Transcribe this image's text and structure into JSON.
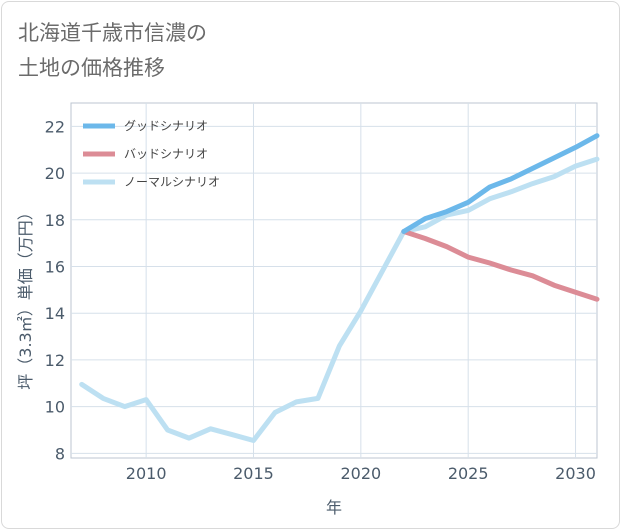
{
  "title_lines": [
    "北海道千歳市信濃の",
    "土地の価格推移"
  ],
  "chart_data": {
    "type": "line",
    "title": "北海道千歳市信濃の土地の価格推移",
    "xlabel": "年",
    "ylabel": "坪（3.3㎡）単価（万円）",
    "xlim": [
      2006.5,
      2031
    ],
    "ylim": [
      7.8,
      23
    ],
    "xticks": [
      2010,
      2015,
      2020,
      2025,
      2030
    ],
    "yticks": [
      8,
      10,
      12,
      14,
      16,
      18,
      20,
      22
    ],
    "grid": true,
    "legend_position": "top-left",
    "series": [
      {
        "name": "グッドシナリオ",
        "color": "#6cb8ea",
        "x": [
          2022,
          2023,
          2024,
          2025,
          2026,
          2027,
          2028,
          2029,
          2030,
          2031
        ],
        "y": [
          17.5,
          18.05,
          18.35,
          18.75,
          19.4,
          19.75,
          20.2,
          20.65,
          21.1,
          21.6
        ]
      },
      {
        "name": "バッドシナリオ",
        "color": "#dc8c96",
        "x": [
          2022,
          2023,
          2024,
          2025,
          2026,
          2027,
          2028,
          2029,
          2030,
          2031
        ],
        "y": [
          17.5,
          17.2,
          16.85,
          16.4,
          16.15,
          15.85,
          15.6,
          15.2,
          14.9,
          14.6
        ]
      },
      {
        "name": "ノーマルシナリオ",
        "color": "#bde0f2",
        "x": [
          2007,
          2008,
          2009,
          2010,
          2011,
          2012,
          2013,
          2014,
          2015,
          2016,
          2017,
          2018,
          2019,
          2020,
          2021,
          2022,
          2023,
          2024,
          2025,
          2026,
          2027,
          2028,
          2029,
          2030,
          2031
        ],
        "y": [
          10.95,
          10.35,
          10.0,
          10.3,
          9.0,
          8.65,
          9.05,
          8.8,
          8.55,
          9.75,
          10.2,
          10.35,
          12.6,
          14.1,
          15.8,
          17.5,
          17.7,
          18.2,
          18.4,
          18.9,
          19.2,
          19.55,
          19.85,
          20.3,
          20.6
        ]
      }
    ]
  }
}
